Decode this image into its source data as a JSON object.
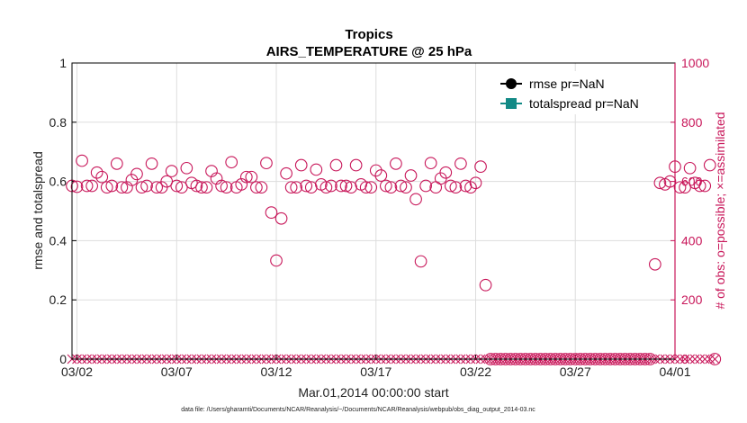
{
  "chart_data": {
    "type": "scatter",
    "title": "Tropics",
    "subtitle": "AIRS_TEMPERATURE @ 25 hPa",
    "xlabel": "Mar.01,2014 00:00:00 start",
    "ylabel_left": "rmse and totalspread",
    "ylabel_right": "# of obs: o=possible; ×=assimilated",
    "footnote": "data file: /Users/gharamti/Documents/NCAR/Reanalysis/~/Documents/NCAR/Reanalysis/webpub/obs_diag_output_2014-03.nc",
    "xlim_days": [
      0.75,
      31.0
    ],
    "x_ticks": [
      {
        "label": "03/02",
        "day": 1
      },
      {
        "label": "03/07",
        "day": 6
      },
      {
        "label": "03/12",
        "day": 11
      },
      {
        "label": "03/17",
        "day": 16
      },
      {
        "label": "03/22",
        "day": 21
      },
      {
        "label": "03/27",
        "day": 26
      },
      {
        "label": "04/01",
        "day": 31
      }
    ],
    "ylim_left": [
      0,
      1
    ],
    "yticks_left": [
      "0",
      "0.2",
      "0.4",
      "0.6",
      "0.8",
      "1"
    ],
    "ylim_right": [
      0,
      1000
    ],
    "yticks_right": [
      "0",
      "200",
      "400",
      "600",
      "800",
      "1000"
    ],
    "grid": true,
    "legend_position": "top-right",
    "legend": [
      {
        "label": "rmse pr=NaN",
        "color": "#000000",
        "marker": "circle"
      },
      {
        "label": "totalspread pr=NaN",
        "color": "#138a86",
        "marker": "square"
      }
    ],
    "colors": {
      "right_axis": "#c8175a",
      "obs": "#c8175a",
      "grid": "#dddddd"
    },
    "obs_possible_start_day": 0.75,
    "obs_possible_step_days": 0.25,
    "obs_possible_values": [
      585,
      582,
      670,
      585,
      585,
      630,
      615,
      580,
      585,
      660,
      580,
      580,
      605,
      625,
      580,
      585,
      660,
      580,
      580,
      600,
      635,
      585,
      580,
      645,
      595,
      585,
      580,
      580,
      635,
      610,
      585,
      580,
      665,
      580,
      590,
      615,
      615,
      580,
      580,
      662,
      495,
      333,
      475,
      627,
      580,
      580,
      655,
      585,
      580,
      640,
      590,
      580,
      585,
      655,
      585,
      585,
      580,
      655,
      590,
      580,
      580,
      637,
      620,
      585,
      580,
      660,
      585,
      580,
      620,
      540,
      330,
      585,
      662,
      580,
      610,
      630,
      585,
      580,
      660,
      585,
      580,
      595,
      650,
      250,
      0,
      0,
      0,
      0,
      0,
      0,
      0,
      0,
      0,
      0,
      0,
      0,
      0,
      0,
      0,
      0,
      0,
      0,
      0,
      0,
      0,
      0,
      0,
      0,
      0,
      0,
      0,
      0,
      0,
      0,
      0,
      0,
      0,
      320,
      595,
      590,
      600,
      650,
      580,
      580,
      645,
      595,
      585,
      585,
      655,
      0
    ],
    "obs_assimilated_values": "0 at every time step",
    "rmse_values": "NaN",
    "totalspread_values": "NaN"
  }
}
